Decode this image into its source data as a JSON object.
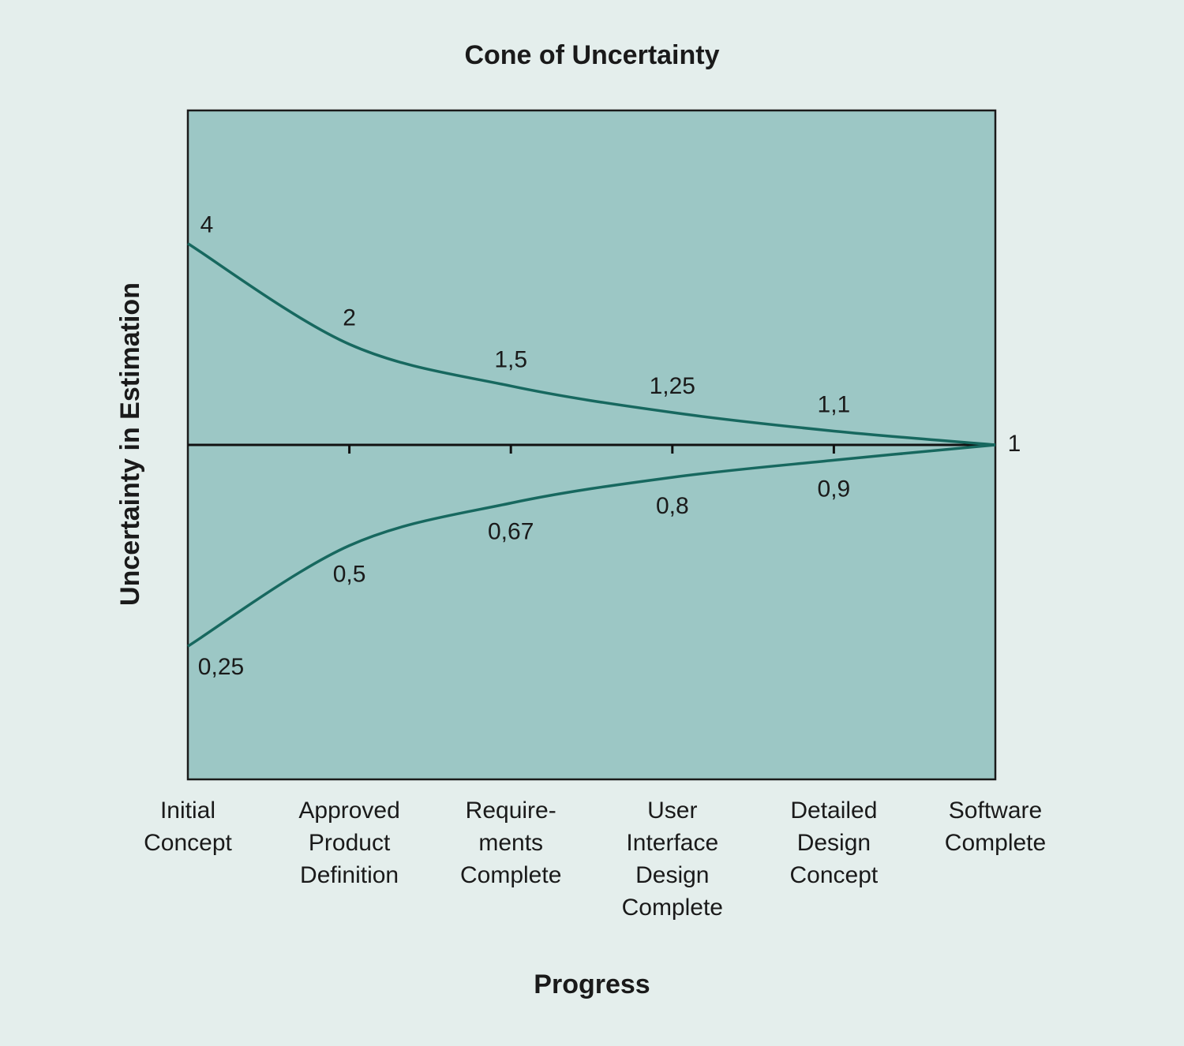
{
  "chart_data": {
    "type": "line",
    "title": "Cone of Uncertainty",
    "x_label": "Progress",
    "y_label": "Uncertainty in Estimation",
    "categories": [
      "Initial\nConcept",
      "Approved\nProduct\nDefinition",
      "Require-\nments\nComplete",
      "User\nInterface\nDesign\nComplete",
      "Detailed\nDesign\nConcept",
      "Software\nComplete"
    ],
    "series": [
      {
        "values": [
          4,
          2,
          1.5,
          1.25,
          1.1,
          1
        ],
        "value_labels": [
          "4",
          "2",
          "1,5",
          "1,25",
          "1,1",
          "1"
        ],
        "color": "#17685f"
      },
      {
        "values": [
          0.25,
          0.5,
          0.67,
          0.8,
          0.9,
          1
        ],
        "value_labels": [
          "0,25",
          "0,5",
          "0,67",
          "0,8",
          "0,9",
          null
        ],
        "color": "#17685f"
      }
    ],
    "ylim": [
      0.1,
      10
    ],
    "log_scale": true,
    "reference_line": 1,
    "plot_color": "#9cc7c5"
  }
}
